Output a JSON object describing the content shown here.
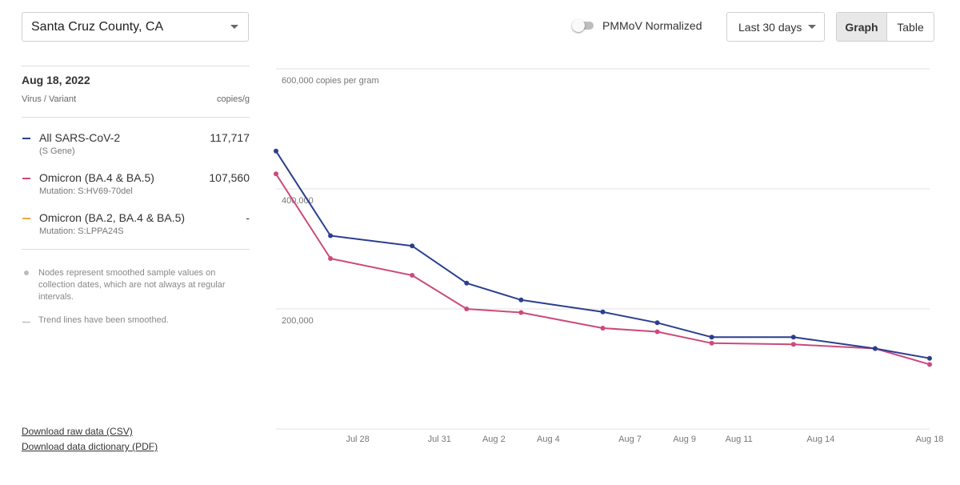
{
  "location": {
    "selected": "Santa Cruz County, CA"
  },
  "normalize_toggle": {
    "label": "PMMoV Normalized",
    "on": false
  },
  "range_select": {
    "selected": "Last 30 days"
  },
  "view_toggle": {
    "graph_label": "Graph",
    "table_label": "Table",
    "active": "Graph"
  },
  "sidebar": {
    "date": "Aug 18, 2022",
    "col_virus": "Virus / Variant",
    "col_unit": "copies/g",
    "legend": [
      {
        "name": "All SARS-CoV-2",
        "sub": "(S Gene)",
        "value": "117,717",
        "color": "#2b3f8f"
      },
      {
        "name": "Omicron (BA.4 & BA.5)",
        "sub": "Mutation: S:HV69-70del",
        "value": "107,560",
        "color": "#cc4a7b"
      },
      {
        "name": "Omicron (BA.2, BA.4 & BA.5)",
        "sub": "Mutation: S:LPPA24S",
        "value": "-",
        "color": "#f0a640"
      }
    ],
    "notes": [
      "Nodes represent smoothed sample values on collection dates, which are not always at regular intervals.",
      "Trend lines have been smoothed."
    ],
    "downloads": [
      "Download raw data (CSV)",
      "Download data dictionary (PDF)"
    ]
  },
  "chart_data": {
    "type": "line",
    "y_unit_label": "600,000 copies per gram",
    "y_ticks": [
      {
        "value": 200000,
        "label": "200,000"
      },
      {
        "value": 400000,
        "label": "400,000"
      },
      {
        "value": 600000,
        "label": "600,000 copies per gram"
      }
    ],
    "ylim": [
      0,
      600000
    ],
    "x_range": [
      "2022-07-25",
      "2022-08-18"
    ],
    "x_ticks": [
      {
        "date": "2022-07-28",
        "label": "Jul 28"
      },
      {
        "date": "2022-07-31",
        "label": "Jul 31"
      },
      {
        "date": "2022-08-02",
        "label": "Aug 2"
      },
      {
        "date": "2022-08-04",
        "label": "Aug 4"
      },
      {
        "date": "2022-08-07",
        "label": "Aug 7"
      },
      {
        "date": "2022-08-09",
        "label": "Aug 9"
      },
      {
        "date": "2022-08-11",
        "label": "Aug 11"
      },
      {
        "date": "2022-08-14",
        "label": "Aug 14"
      },
      {
        "date": "2022-08-18",
        "label": "Aug 18"
      }
    ],
    "grid": true,
    "series": [
      {
        "name": "All SARS-CoV-2",
        "color": "#2b3f8f",
        "points": [
          [
            "2022-07-25",
            463000
          ],
          [
            "2022-07-27",
            322000
          ],
          [
            "2022-07-30",
            305000
          ],
          [
            "2022-08-01",
            243000
          ],
          [
            "2022-08-03",
            215000
          ],
          [
            "2022-08-06",
            195000
          ],
          [
            "2022-08-08",
            177000
          ],
          [
            "2022-08-10",
            153000
          ],
          [
            "2022-08-13",
            153000
          ],
          [
            "2022-08-16",
            134000
          ],
          [
            "2022-08-18",
            117717
          ]
        ]
      },
      {
        "name": "Omicron (BA.4 & BA.5)",
        "color": "#cc4a7b",
        "points": [
          [
            "2022-07-25",
            425000
          ],
          [
            "2022-07-27",
            284000
          ],
          [
            "2022-07-30",
            256000
          ],
          [
            "2022-08-01",
            200000
          ],
          [
            "2022-08-03",
            194000
          ],
          [
            "2022-08-06",
            168000
          ],
          [
            "2022-08-08",
            162000
          ],
          [
            "2022-08-10",
            143000
          ],
          [
            "2022-08-13",
            141000
          ],
          [
            "2022-08-16",
            134000
          ],
          [
            "2022-08-18",
            107560
          ]
        ]
      }
    ]
  }
}
